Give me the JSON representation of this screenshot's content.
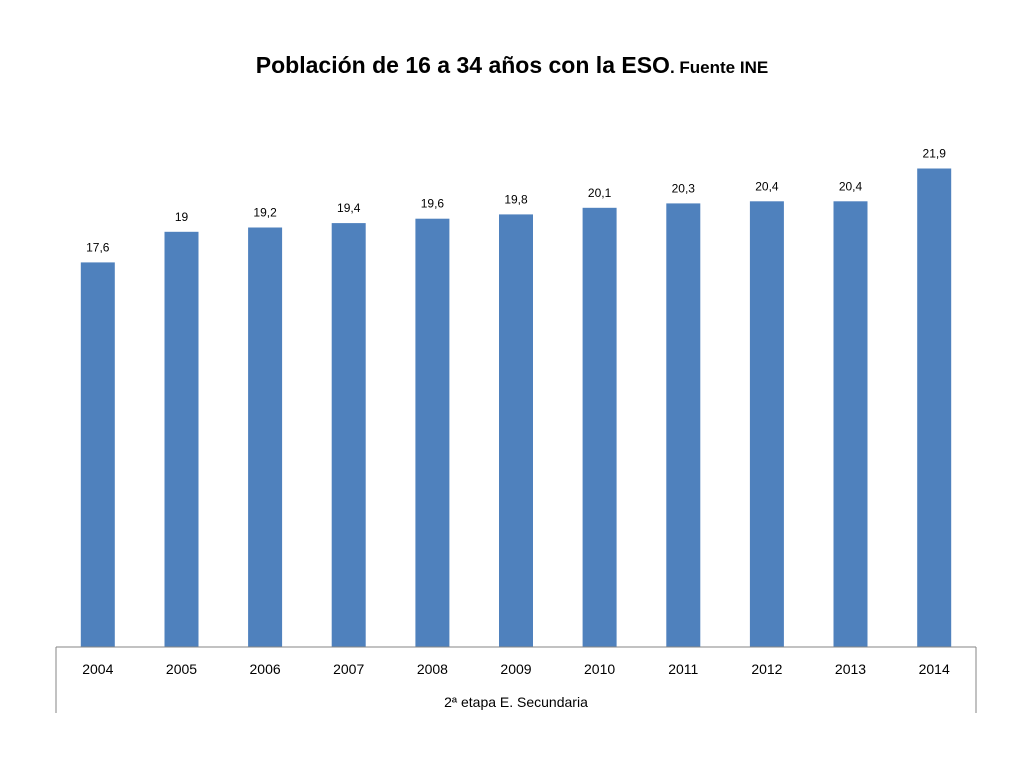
{
  "title": "Población de 16 a 34 años con la ESO",
  "subtitle": ". Fuente INE",
  "chart_data": {
    "type": "bar",
    "title": "Población de 16 a 34 años con la ESO. Fuente INE",
    "categories": [
      "2004",
      "2005",
      "2006",
      "2007",
      "2008",
      "2009",
      "2010",
      "2011",
      "2012",
      "2013",
      "2014"
    ],
    "group_label": "2ª etapa E. Secundaria",
    "series": [
      {
        "values": [
          17.6,
          19,
          19.2,
          19.4,
          19.6,
          19.8,
          20.1,
          20.3,
          20.4,
          20.4,
          21.9
        ],
        "data_labels": [
          "17,6",
          "19",
          "19,2",
          "19,4",
          "19,6",
          "19,8",
          "20,1",
          "20,3",
          "20,4",
          "20,4",
          "21,9"
        ],
        "color": "#4F81BD"
      }
    ],
    "ylim": [
      0,
      22
    ],
    "grid": false,
    "legend": "none"
  }
}
